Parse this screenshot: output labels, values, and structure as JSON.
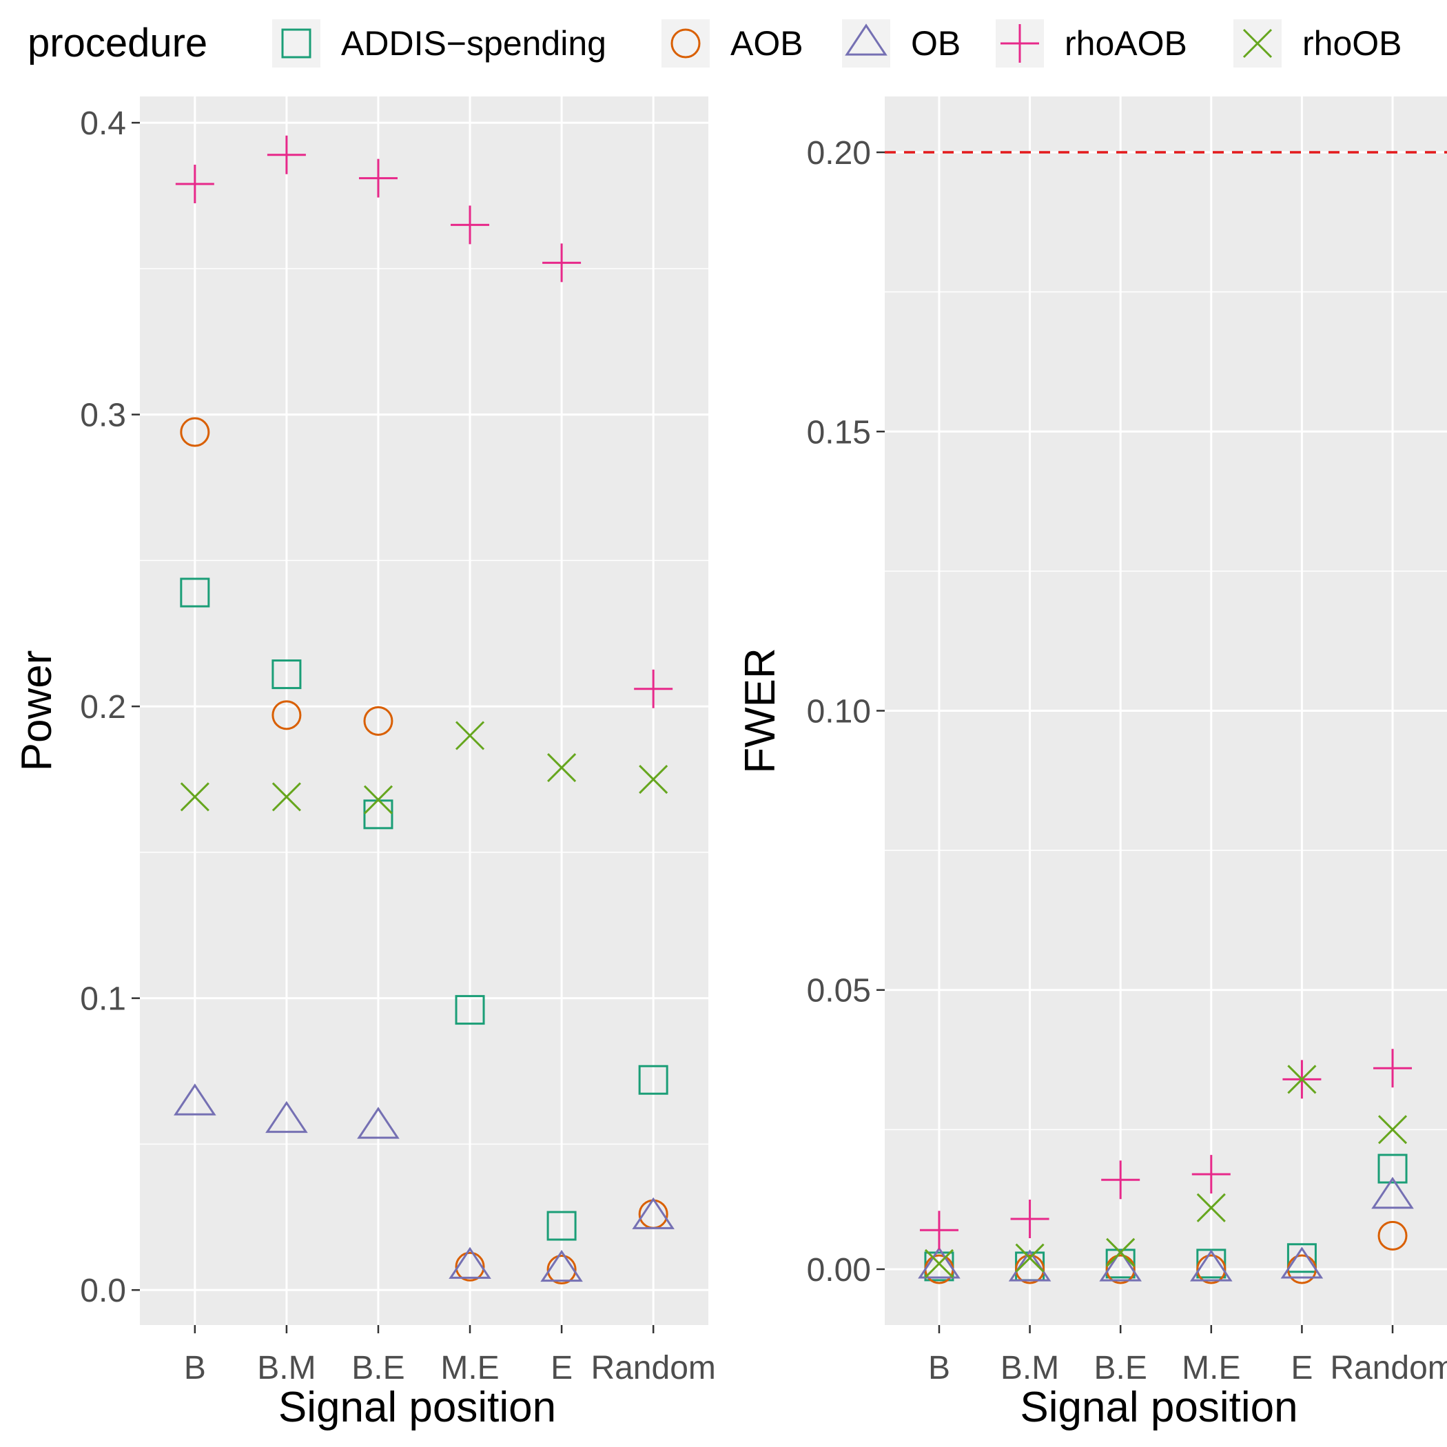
{
  "legend": {
    "title": "procedure",
    "items": [
      {
        "name": "ADDIS−spending",
        "shape": "square-open",
        "color": "#1B9E77"
      },
      {
        "name": "AOB",
        "shape": "circle-open",
        "color": "#D95F02"
      },
      {
        "name": "OB",
        "shape": "triangle-open",
        "color": "#7570B3"
      },
      {
        "name": "rhoAOB",
        "shape": "plus",
        "color": "#E7298A"
      },
      {
        "name": "rhoOB",
        "shape": "cross",
        "color": "#66A61E"
      }
    ]
  },
  "chart_data": [
    {
      "type": "scatter",
      "xlabel": "Signal position",
      "ylabel": "Power",
      "categories": [
        "B",
        "B.M",
        "B.E",
        "M.E",
        "E",
        "Random"
      ],
      "ylim": [
        -0.012,
        0.409
      ],
      "yticks": [
        0.0,
        0.1,
        0.2,
        0.3,
        0.4
      ],
      "ytick_labels": [
        "0.0",
        "0.1",
        "0.2",
        "0.3",
        "0.4"
      ],
      "series": [
        {
          "name": "ADDIS−spending",
          "values": [
            0.239,
            0.211,
            0.163,
            0.096,
            0.022,
            0.072
          ]
        },
        {
          "name": "AOB",
          "values": [
            0.294,
            0.197,
            0.195,
            0.008,
            0.007,
            0.026
          ]
        },
        {
          "name": "OB",
          "values": [
            0.064,
            0.058,
            0.056,
            0.008,
            0.007,
            0.025
          ]
        },
        {
          "name": "rhoAOB",
          "values": [
            0.379,
            0.389,
            0.381,
            0.365,
            0.352,
            0.206
          ]
        },
        {
          "name": "rhoOB",
          "values": [
            0.169,
            0.169,
            0.168,
            0.19,
            0.179,
            0.175
          ]
        }
      ]
    },
    {
      "type": "scatter",
      "xlabel": "Signal position",
      "ylabel": "FWER",
      "categories": [
        "B",
        "B.M",
        "B.E",
        "M.E",
        "E",
        "Random"
      ],
      "ylim": [
        -0.01,
        0.21
      ],
      "yticks": [
        0.0,
        0.05,
        0.1,
        0.15,
        0.2
      ],
      "ytick_labels": [
        "0.00",
        "0.05",
        "0.10",
        "0.15",
        "0.20"
      ],
      "hline": {
        "value": 0.2,
        "color": "#e31a1c",
        "style": "dashed"
      },
      "series": [
        {
          "name": "ADDIS−spending",
          "values": [
            0.0005,
            0.0005,
            0.001,
            0.001,
            0.002,
            0.018
          ]
        },
        {
          "name": "AOB",
          "values": [
            0.0,
            0.0,
            0.0,
            0.0,
            0.0,
            0.006
          ]
        },
        {
          "name": "OB",
          "values": [
            0.0005,
            0.0,
            0.0,
            0.0,
            0.0005,
            0.013
          ]
        },
        {
          "name": "rhoAOB",
          "values": [
            0.007,
            0.009,
            0.016,
            0.017,
            0.034,
            0.036
          ]
        },
        {
          "name": "rhoOB",
          "values": [
            0.001,
            0.002,
            0.003,
            0.011,
            0.034,
            0.025
          ]
        }
      ]
    }
  ]
}
